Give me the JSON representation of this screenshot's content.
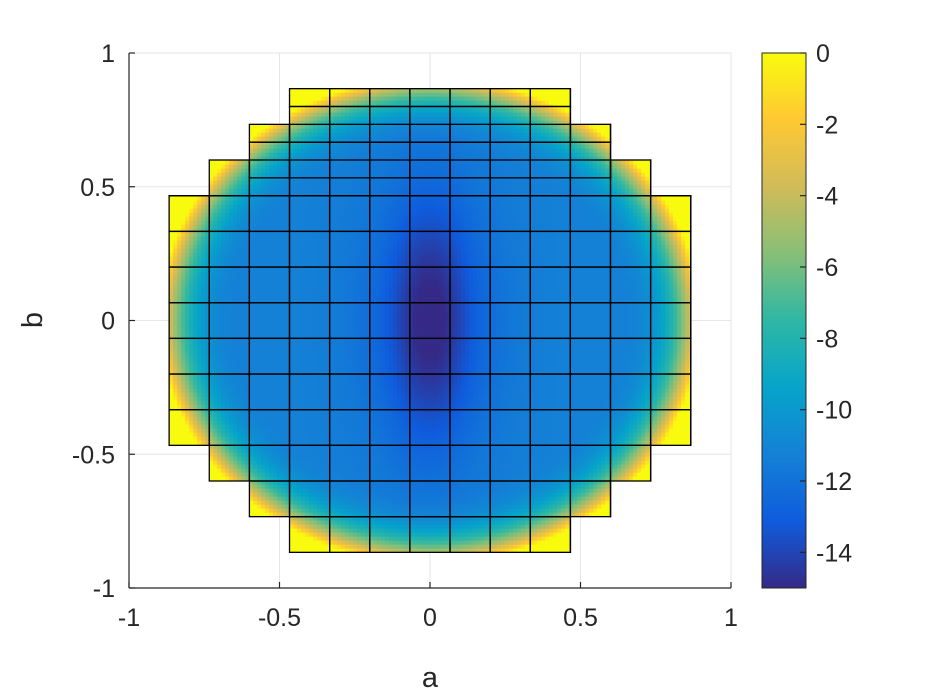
{
  "chart_data": {
    "type": "heatmap",
    "title": "",
    "xlabel": "a",
    "ylabel": "b",
    "xlim": [
      -1,
      1
    ],
    "ylim": [
      -1,
      1
    ],
    "x_ticks": [
      -1,
      -0.5,
      0,
      0.5,
      1
    ],
    "y_ticks": [
      -1,
      -0.5,
      0,
      0.5,
      1
    ],
    "x_tick_labels": [
      "-1",
      "-0.5",
      "0",
      "0.5",
      "1"
    ],
    "y_tick_labels": [
      "-1",
      "-0.5",
      "0",
      "0.5",
      "1"
    ],
    "grid": true,
    "domain_shape": "circle-like region of radius about 0.87 made of square cells",
    "cell_size": 0.1333,
    "cell_rows": [
      {
        "y_range": [
          0.6667,
          0.8667
        ],
        "x_range": [
          -0.4667,
          0.4667
        ]
      },
      {
        "y_range": [
          0.5333,
          0.7333
        ],
        "x_range": [
          -0.6,
          0.6
        ]
      },
      {
        "y_range": [
          0.4667,
          0.6
        ],
        "x_range": [
          -0.7333,
          0.7333
        ]
      },
      {
        "y_range": [
          -0.4667,
          0.4667
        ],
        "x_range": [
          -0.8667,
          0.8667
        ]
      },
      {
        "y_range": [
          -0.6,
          -0.4667
        ],
        "x_range": [
          -0.7333,
          0.7333
        ]
      },
      {
        "y_range": [
          -0.7333,
          -0.6
        ],
        "x_range": [
          -0.6,
          0.6
        ]
      },
      {
        "y_range": [
          -0.8667,
          -0.7333
        ],
        "x_range": [
          -0.4667,
          0.4667
        ]
      }
    ],
    "value_description": "minimum about -15 near (0,0) elongated along b, rising to about 0 at the domain boundary",
    "colorbar": {
      "colormap": "parula",
      "range": [
        -15,
        0
      ],
      "ticks": [
        0,
        -2,
        -4,
        -6,
        -8,
        -10,
        -12,
        -14
      ],
      "tick_labels": [
        "0",
        "-2",
        "-4",
        "-6",
        "-8",
        "-10",
        "-12",
        "-14"
      ]
    },
    "colors": {
      "axis": "#262626",
      "grid": "#e6e6e6",
      "cell_edge": "#000000",
      "parula": [
        "#352a87",
        "#0f5cdd",
        "#1481d6",
        "#06a4ca",
        "#2eb7a4",
        "#87bf77",
        "#d1bb59",
        "#fec832",
        "#f9fb0e"
      ]
    }
  }
}
